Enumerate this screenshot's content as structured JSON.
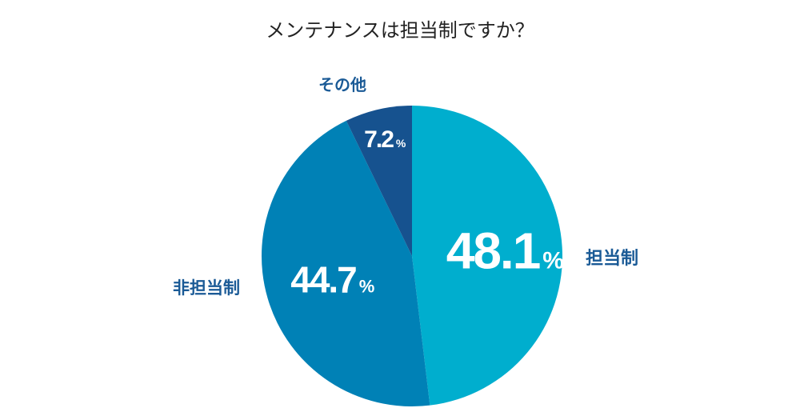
{
  "chart_data": {
    "type": "pie",
    "title": "メンテナンスは担当制ですか？",
    "slices": [
      {
        "label": "担当制",
        "value": 48.1,
        "value_text": "48.1",
        "color": "#00aece"
      },
      {
        "label": "非担当制",
        "value": 44.7,
        "value_text": "44.7",
        "color": "#0081b6"
      },
      {
        "label": "その他",
        "value": 7.2,
        "value_text": "7.2",
        "color": "#16528f"
      }
    ],
    "unit": "%",
    "label_color": "#1a5a96"
  }
}
